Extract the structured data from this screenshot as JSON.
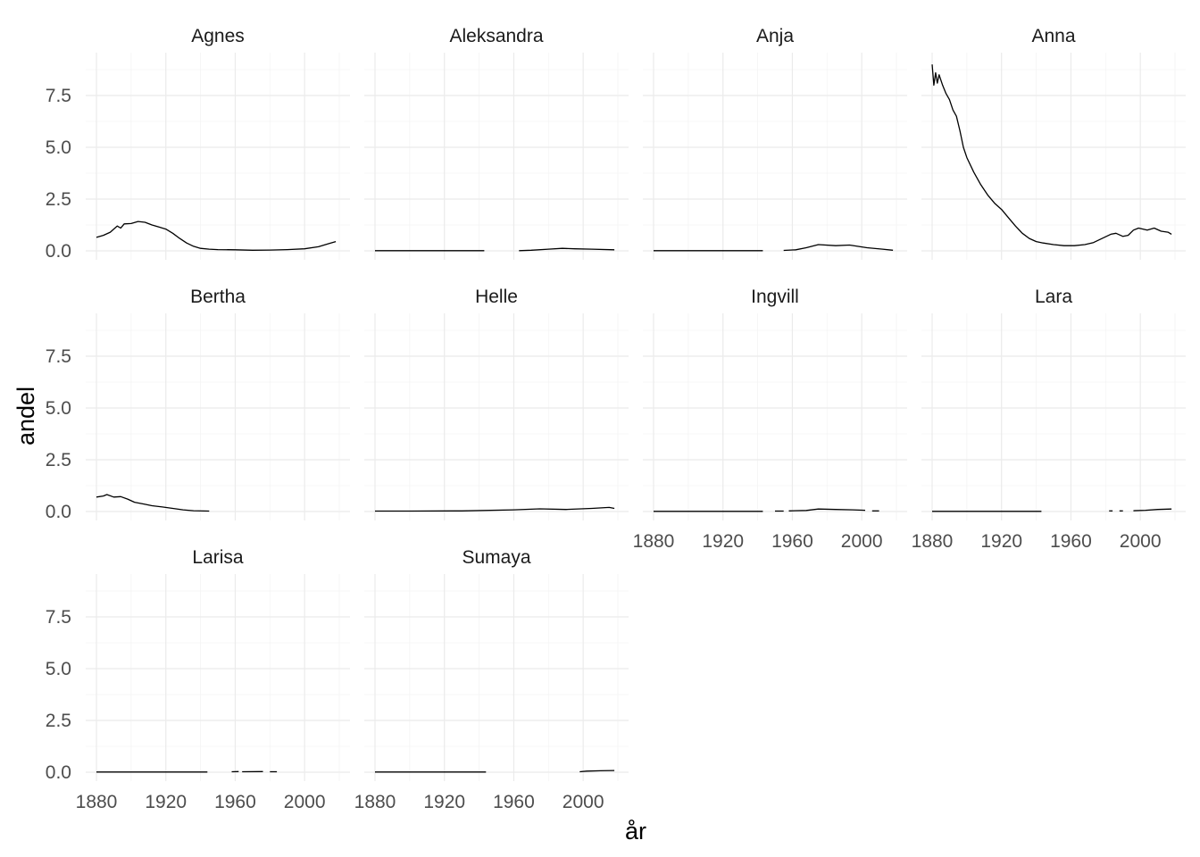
{
  "chart_data": {
    "type": "line",
    "layout": "facet_wrap",
    "ncol": 4,
    "xlabel": "år",
    "ylabel": "andel",
    "xlim": [
      1880,
      2020
    ],
    "ylim": [
      0,
      9
    ],
    "x_ticks": [
      1880,
      1920,
      1960,
      2000
    ],
    "y_ticks": [
      "0.0",
      "2.5",
      "5.0",
      "7.5"
    ],
    "y_tick_values": [
      0,
      2.5,
      5,
      7.5
    ],
    "grid": true,
    "line_color": "#000000",
    "facets": [
      {
        "name": "Agnes",
        "segments": [
          [
            [
              1880,
              0.65
            ],
            [
              1884,
              0.75
            ],
            [
              1888,
              0.9
            ],
            [
              1892,
              1.2
            ],
            [
              1894,
              1.1
            ],
            [
              1896,
              1.3
            ],
            [
              1900,
              1.32
            ],
            [
              1904,
              1.42
            ],
            [
              1908,
              1.38
            ],
            [
              1912,
              1.25
            ],
            [
              1916,
              1.15
            ],
            [
              1920,
              1.05
            ],
            [
              1924,
              0.85
            ],
            [
              1928,
              0.6
            ],
            [
              1932,
              0.38
            ],
            [
              1936,
              0.22
            ],
            [
              1940,
              0.12
            ],
            [
              1945,
              0.08
            ],
            [
              1950,
              0.06
            ],
            [
              1960,
              0.05
            ],
            [
              1970,
              0.03
            ],
            [
              1980,
              0.04
            ],
            [
              1990,
              0.06
            ],
            [
              2000,
              0.1
            ],
            [
              2008,
              0.2
            ],
            [
              2014,
              0.35
            ],
            [
              2018,
              0.45
            ]
          ]
        ]
      },
      {
        "name": "Aleksandra",
        "segments": [
          [
            [
              1880,
              0.01
            ],
            [
              1943,
              0.01
            ]
          ],
          [
            [
              1963,
              0.01
            ],
            [
              1970,
              0.03
            ],
            [
              1980,
              0.08
            ],
            [
              1988,
              0.12
            ],
            [
              1995,
              0.1
            ],
            [
              2005,
              0.08
            ],
            [
              2018,
              0.05
            ]
          ]
        ]
      },
      {
        "name": "Anja",
        "segments": [
          [
            [
              1880,
              0.01
            ],
            [
              1943,
              0.01
            ]
          ],
          [
            [
              1955,
              0.02
            ],
            [
              1962,
              0.05
            ],
            [
              1968,
              0.15
            ],
            [
              1975,
              0.3
            ],
            [
              1985,
              0.25
            ],
            [
              1993,
              0.28
            ],
            [
              2003,
              0.15
            ],
            [
              2012,
              0.08
            ],
            [
              2018,
              0.03
            ]
          ]
        ]
      },
      {
        "name": "Anna",
        "segments": [
          [
            [
              1880,
              9.0
            ],
            [
              1881,
              8.0
            ],
            [
              1882,
              8.6
            ],
            [
              1883,
              8.1
            ],
            [
              1884,
              8.5
            ],
            [
              1886,
              8.0
            ],
            [
              1888,
              7.6
            ],
            [
              1890,
              7.3
            ],
            [
              1892,
              6.8
            ],
            [
              1894,
              6.5
            ],
            [
              1896,
              5.8
            ],
            [
              1898,
              5.0
            ],
            [
              1900,
              4.5
            ],
            [
              1904,
              3.8
            ],
            [
              1908,
              3.2
            ],
            [
              1912,
              2.7
            ],
            [
              1916,
              2.3
            ],
            [
              1920,
              2.0
            ],
            [
              1924,
              1.6
            ],
            [
              1928,
              1.2
            ],
            [
              1932,
              0.85
            ],
            [
              1936,
              0.6
            ],
            [
              1940,
              0.45
            ],
            [
              1944,
              0.38
            ],
            [
              1950,
              0.3
            ],
            [
              1956,
              0.25
            ],
            [
              1962,
              0.25
            ],
            [
              1968,
              0.3
            ],
            [
              1973,
              0.4
            ],
            [
              1978,
              0.6
            ],
            [
              1983,
              0.8
            ],
            [
              1986,
              0.85
            ],
            [
              1990,
              0.7
            ],
            [
              1993,
              0.75
            ],
            [
              1996,
              1.0
            ],
            [
              1999,
              1.1
            ],
            [
              2004,
              1.0
            ],
            [
              2008,
              1.1
            ],
            [
              2012,
              0.95
            ],
            [
              2016,
              0.9
            ],
            [
              2018,
              0.8
            ]
          ]
        ]
      },
      {
        "name": "Bertha",
        "segments": [
          [
            [
              1880,
              0.7
            ],
            [
              1884,
              0.75
            ],
            [
              1886,
              0.82
            ],
            [
              1890,
              0.7
            ],
            [
              1894,
              0.72
            ],
            [
              1898,
              0.6
            ],
            [
              1902,
              0.45
            ],
            [
              1908,
              0.35
            ],
            [
              1912,
              0.28
            ],
            [
              1918,
              0.22
            ],
            [
              1924,
              0.15
            ],
            [
              1930,
              0.08
            ],
            [
              1936,
              0.04
            ],
            [
              1945,
              0.02
            ]
          ]
        ]
      },
      {
        "name": "Helle",
        "segments": [
          [
            [
              1880,
              0.02
            ],
            [
              1900,
              0.02
            ],
            [
              1930,
              0.03
            ],
            [
              1960,
              0.08
            ],
            [
              1975,
              0.13
            ],
            [
              1990,
              0.1
            ],
            [
              2005,
              0.15
            ],
            [
              2015,
              0.2
            ],
            [
              2018,
              0.15
            ]
          ]
        ]
      },
      {
        "name": "Ingvill",
        "segments": [
          [
            [
              1880,
              0.01
            ],
            [
              1943,
              0.01
            ]
          ],
          [
            [
              1950,
              0.02
            ],
            [
              1955,
              0.02
            ]
          ],
          [
            [
              1958,
              0.03
            ],
            [
              1968,
              0.05
            ],
            [
              1975,
              0.12
            ],
            [
              1985,
              0.1
            ],
            [
              1995,
              0.08
            ],
            [
              2002,
              0.06
            ]
          ],
          [
            [
              2006,
              0.03
            ],
            [
              2010,
              0.03
            ]
          ]
        ]
      },
      {
        "name": "Lara",
        "segments": [
          [
            [
              1880,
              0.01
            ],
            [
              1943,
              0.01
            ]
          ],
          [
            [
              1982,
              0.03
            ],
            [
              1984,
              0.03
            ]
          ],
          [
            [
              1988,
              0.03
            ],
            [
              1990,
              0.03
            ]
          ],
          [
            [
              1996,
              0.04
            ],
            [
              2003,
              0.06
            ],
            [
              2010,
              0.1
            ],
            [
              2018,
              0.12
            ]
          ]
        ]
      },
      {
        "name": "Larisa",
        "segments": [
          [
            [
              1880,
              0.01
            ],
            [
              1944,
              0.01
            ]
          ],
          [
            [
              1958,
              0.02
            ],
            [
              1962,
              0.03
            ]
          ],
          [
            [
              1964,
              0.02
            ],
            [
              1976,
              0.03
            ]
          ],
          [
            [
              1980,
              0.02
            ],
            [
              1984,
              0.02
            ]
          ]
        ]
      },
      {
        "name": "Sumaya",
        "segments": [
          [
            [
              1880,
              0.01
            ],
            [
              1944,
              0.01
            ]
          ],
          [
            [
              1998,
              0.02
            ],
            [
              2002,
              0.05
            ],
            [
              2010,
              0.07
            ],
            [
              2018,
              0.08
            ]
          ]
        ]
      }
    ]
  }
}
